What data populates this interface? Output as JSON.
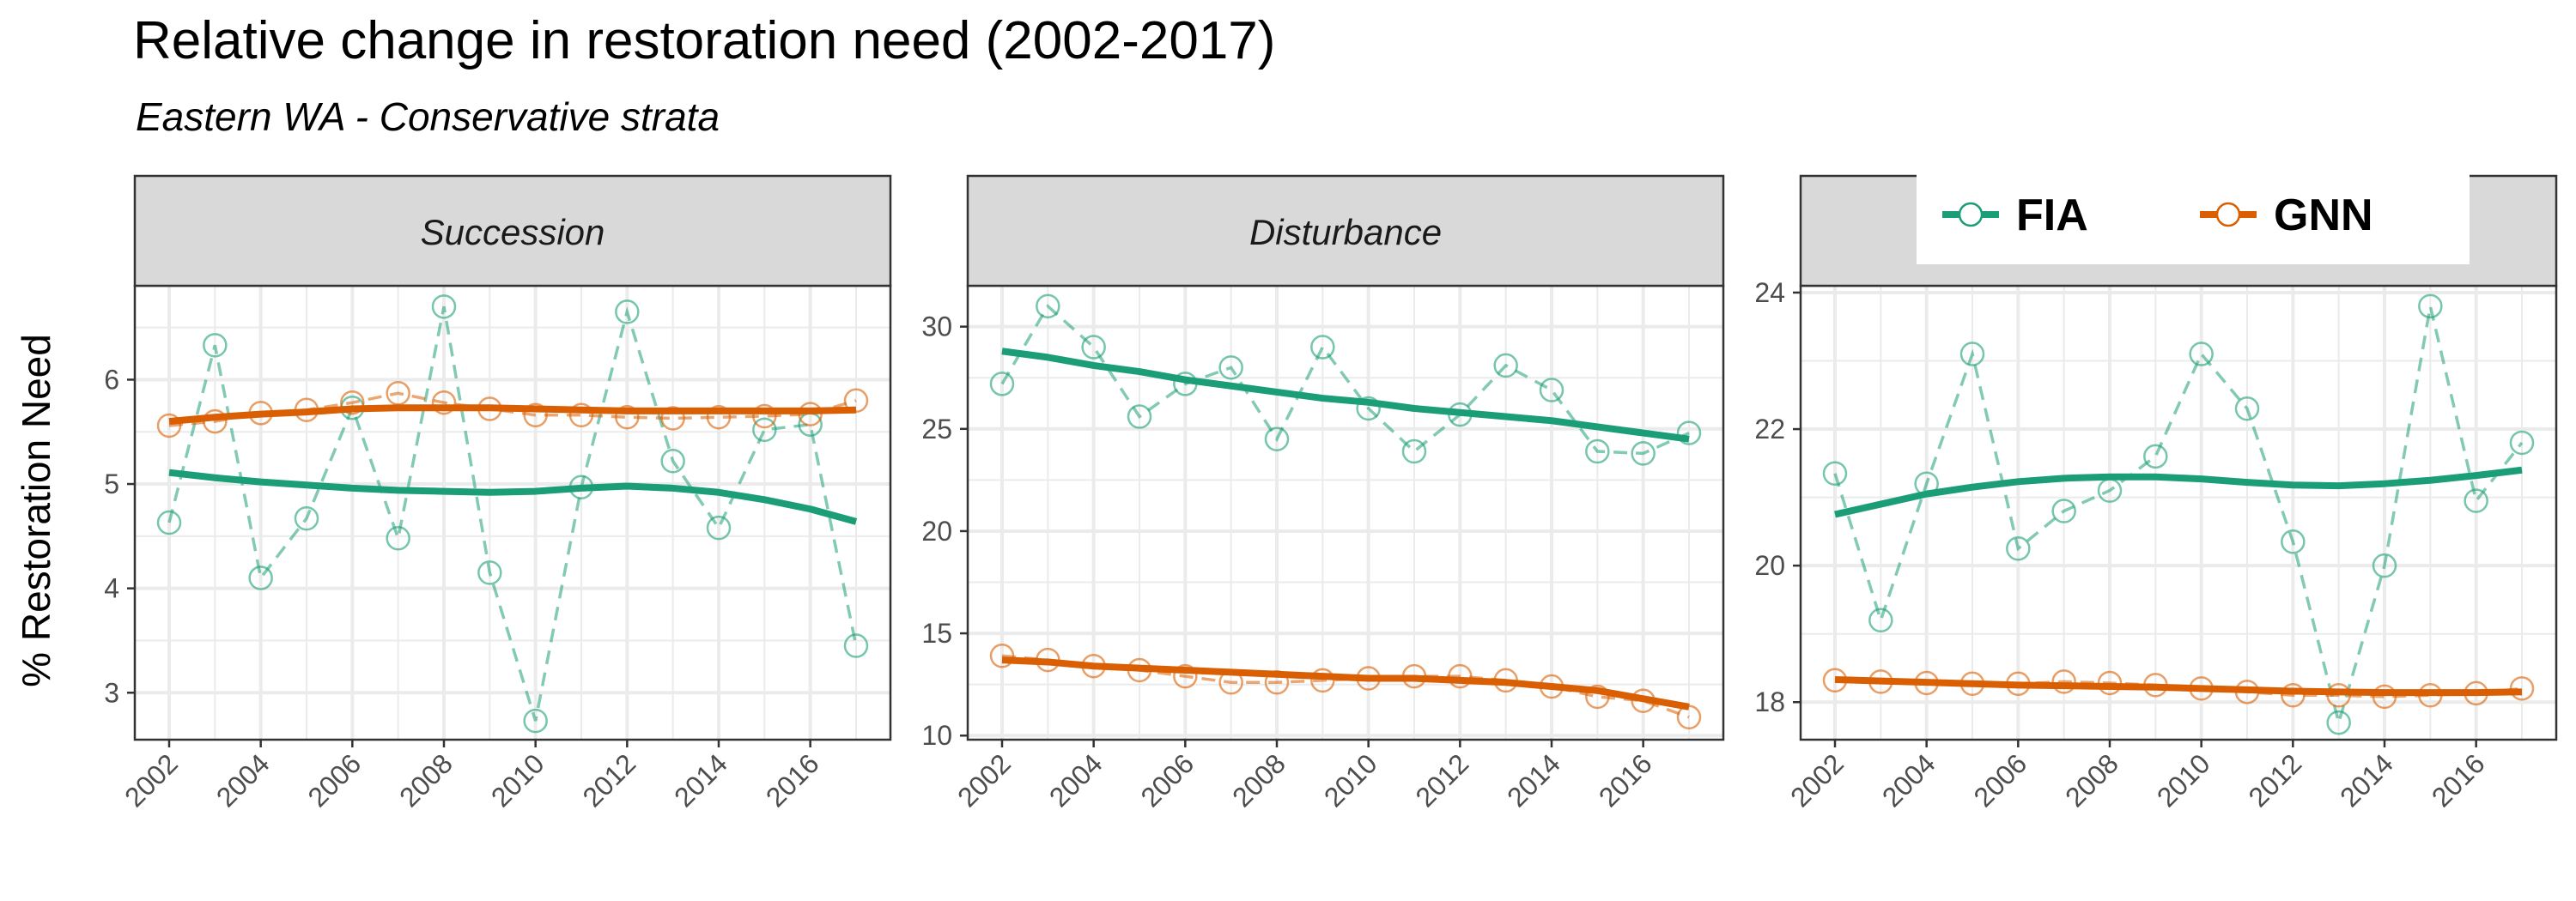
{
  "title": "Relative change in restoration need (2002-2017)",
  "subtitle": "Eastern WA - Conservative strata",
  "colors": {
    "FIA": "#1b9e77",
    "GNN": "#d95f02",
    "strip_bg": "#d9d9d9",
    "grid": "#ebebeb"
  },
  "chart_data": [
    {
      "type": "line",
      "strip": "Succession",
      "ylabel": "% Restoration Need",
      "x": [
        2002,
        2003,
        2004,
        2005,
        2006,
        2007,
        2008,
        2009,
        2010,
        2011,
        2012,
        2013,
        2014,
        2015,
        2016,
        2017
      ],
      "xticks": [
        "2002",
        "2004",
        "2006",
        "2008",
        "2010",
        "2012",
        "2014",
        "2016"
      ],
      "ylim": [
        2.55,
        6.9
      ],
      "yticks": [
        "3",
        "4",
        "5",
        "6"
      ],
      "series": [
        {
          "name": "FIA",
          "values": [
            4.63,
            6.33,
            4.1,
            4.67,
            5.73,
            4.48,
            6.7,
            4.15,
            2.73,
            4.97,
            6.65,
            5.22,
            4.58,
            5.52,
            5.57,
            3.45
          ],
          "trend": [
            5.11,
            5.06,
            5.02,
            4.99,
            4.96,
            4.94,
            4.93,
            4.92,
            4.93,
            4.96,
            4.98,
            4.96,
            4.92,
            4.85,
            4.76,
            4.64
          ]
        },
        {
          "name": "GNN",
          "values": [
            5.56,
            5.6,
            5.68,
            5.71,
            5.78,
            5.87,
            5.78,
            5.72,
            5.66,
            5.66,
            5.64,
            5.63,
            5.64,
            5.65,
            5.67,
            5.8
          ],
          "trend": [
            5.6,
            5.64,
            5.67,
            5.69,
            5.72,
            5.73,
            5.73,
            5.73,
            5.72,
            5.71,
            5.7,
            5.7,
            5.7,
            5.7,
            5.7,
            5.71
          ]
        }
      ]
    },
    {
      "type": "line",
      "strip": "Disturbance",
      "x": [
        2002,
        2003,
        2004,
        2005,
        2006,
        2007,
        2008,
        2009,
        2010,
        2011,
        2012,
        2013,
        2014,
        2015,
        2016,
        2017
      ],
      "xticks": [
        "2002",
        "2004",
        "2006",
        "2008",
        "2010",
        "2012",
        "2014",
        "2016"
      ],
      "ylim": [
        9.8,
        32.0
      ],
      "yticks": [
        "10",
        "15",
        "20",
        "25",
        "30"
      ],
      "series": [
        {
          "name": "FIA",
          "values": [
            27.2,
            31.0,
            29.0,
            25.6,
            27.2,
            28.0,
            24.5,
            29.0,
            26.0,
            23.9,
            25.7,
            28.1,
            26.9,
            23.9,
            23.8,
            24.8
          ],
          "trend": [
            28.8,
            28.5,
            28.1,
            27.8,
            27.4,
            27.1,
            26.8,
            26.5,
            26.3,
            26.0,
            25.8,
            25.6,
            25.4,
            25.1,
            24.8,
            24.5
          ]
        },
        {
          "name": "GNN",
          "values": [
            13.9,
            13.7,
            13.4,
            13.2,
            12.9,
            12.6,
            12.6,
            12.7,
            12.8,
            12.9,
            12.9,
            12.7,
            12.4,
            11.9,
            11.7,
            10.9
          ],
          "trend": [
            13.7,
            13.6,
            13.4,
            13.3,
            13.2,
            13.1,
            13.0,
            12.9,
            12.8,
            12.8,
            12.7,
            12.6,
            12.4,
            12.2,
            11.8,
            11.4
          ]
        }
      ]
    },
    {
      "type": "line",
      "x": [
        2002,
        2003,
        2004,
        2005,
        2006,
        2007,
        2008,
        2009,
        2010,
        2011,
        2012,
        2013,
        2014,
        2015,
        2016,
        2017
      ],
      "xticks": [
        "2002",
        "2004",
        "2006",
        "2008",
        "2010",
        "2012",
        "2014",
        "2016"
      ],
      "ylim": [
        17.45,
        24.1
      ],
      "yticks": [
        "18",
        "20",
        "22",
        "24"
      ],
      "legend": {
        "position": "top-right",
        "entries": [
          "FIA",
          "GNN"
        ]
      },
      "series": [
        {
          "name": "FIA",
          "values": [
            21.35,
            19.2,
            21.2,
            23.1,
            20.25,
            20.8,
            21.1,
            21.6,
            23.1,
            22.3,
            20.35,
            17.7,
            20.0,
            23.8,
            20.95,
            21.8
          ],
          "trend": [
            20.75,
            20.9,
            21.05,
            21.15,
            21.23,
            21.28,
            21.3,
            21.3,
            21.27,
            21.22,
            21.18,
            21.17,
            21.2,
            21.25,
            21.32,
            21.4
          ]
        },
        {
          "name": "GNN",
          "values": [
            18.32,
            18.3,
            18.28,
            18.27,
            18.27,
            18.3,
            18.28,
            18.25,
            18.2,
            18.15,
            18.1,
            18.1,
            18.08,
            18.1,
            18.13,
            18.2
          ],
          "trend": [
            18.33,
            18.31,
            18.29,
            18.27,
            18.25,
            18.24,
            18.23,
            18.22,
            18.2,
            18.18,
            18.16,
            18.15,
            18.14,
            18.14,
            18.14,
            18.15
          ]
        }
      ]
    }
  ]
}
